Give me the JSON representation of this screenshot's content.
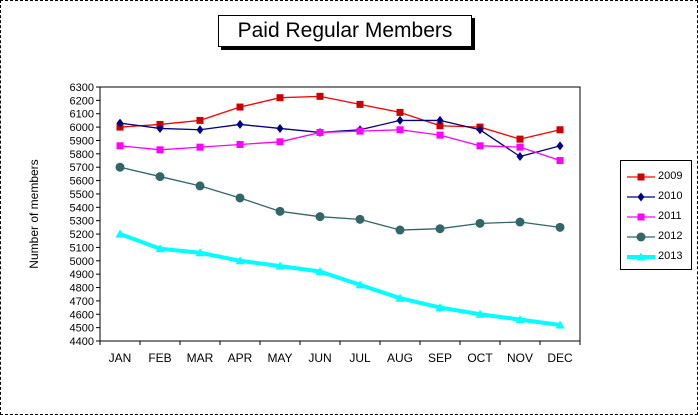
{
  "chart_data": {
    "type": "line",
    "title": "Paid Regular Members",
    "xlabel": "",
    "ylabel": "Number of members",
    "ylim": [
      4400,
      6300
    ],
    "ytick_step": 100,
    "categories": [
      "JAN",
      "FEB",
      "MAR",
      "APR",
      "MAY",
      "JUN",
      "JUL",
      "AUG",
      "SEP",
      "OCT",
      "NOV",
      "DEC"
    ],
    "grid": false,
    "legend_position": "right",
    "series": [
      {
        "name": "2009",
        "color": "#ff0000",
        "marker": "square",
        "marker_color": "#cc0000",
        "values": [
          6000,
          6020,
          6050,
          6150,
          6220,
          6230,
          6170,
          6110,
          6010,
          6000,
          5910,
          5980
        ]
      },
      {
        "name": "2010",
        "color": "#000080",
        "marker": "diamond",
        "marker_color": "#000080",
        "values": [
          6030,
          5990,
          5980,
          6020,
          5990,
          5960,
          5980,
          6050,
          6050,
          5980,
          5780,
          5860
        ]
      },
      {
        "name": "2011",
        "color": "#ff00ff",
        "marker": "square",
        "marker_color": "#ff00ff",
        "values": [
          5860,
          5830,
          5850,
          5870,
          5890,
          5960,
          5970,
          5980,
          5940,
          5860,
          5850,
          5750
        ]
      },
      {
        "name": "2012",
        "color": "#336666",
        "marker": "circle",
        "marker_color": "#336666",
        "values": [
          5700,
          5630,
          5560,
          5470,
          5370,
          5330,
          5310,
          5230,
          5240,
          5280,
          5290,
          5250
        ]
      },
      {
        "name": "2013",
        "color": "#00ffff",
        "marker": "triangle",
        "marker_color": "#00ffff",
        "values": [
          5200,
          5090,
          5060,
          5000,
          4960,
          4920,
          4820,
          4720,
          4650,
          4600,
          4560,
          4520
        ]
      }
    ]
  }
}
